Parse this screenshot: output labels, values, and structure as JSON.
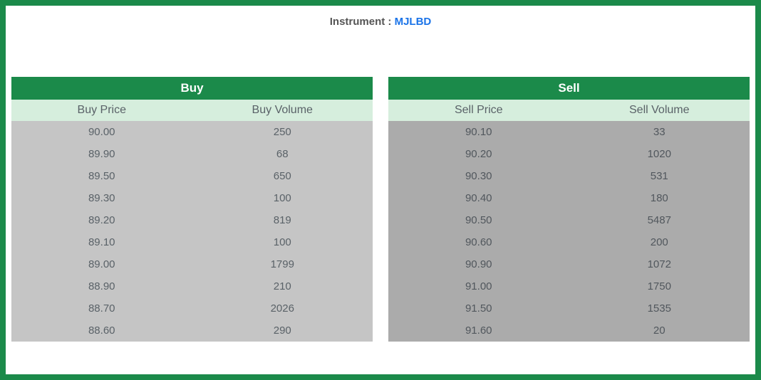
{
  "header": {
    "label": "Instrument : ",
    "value": "MJLBD"
  },
  "buy": {
    "title": "Buy",
    "columns": [
      "Buy Price",
      "Buy Volume"
    ],
    "rows": [
      [
        "90.00",
        "250"
      ],
      [
        "89.90",
        "68"
      ],
      [
        "89.50",
        "650"
      ],
      [
        "89.30",
        "100"
      ],
      [
        "89.20",
        "819"
      ],
      [
        "89.10",
        "100"
      ],
      [
        "89.00",
        "1799"
      ],
      [
        "88.90",
        "210"
      ],
      [
        "88.70",
        "2026"
      ],
      [
        "88.60",
        "290"
      ]
    ]
  },
  "sell": {
    "title": "Sell",
    "columns": [
      "Sell Price",
      "Sell Volume"
    ],
    "rows": [
      [
        "90.10",
        "33"
      ],
      [
        "90.20",
        "1020"
      ],
      [
        "90.30",
        "531"
      ],
      [
        "90.40",
        "180"
      ],
      [
        "90.50",
        "5487"
      ],
      [
        "90.60",
        "200"
      ],
      [
        "90.90",
        "1072"
      ],
      [
        "91.00",
        "1750"
      ],
      [
        "91.50",
        "1535"
      ],
      [
        "91.60",
        "20"
      ]
    ]
  },
  "colors": {
    "border": "#1b8a4a",
    "title_bg": "#1b8a4a",
    "subheader_bg": "#d6eedd",
    "buy_row_bg": "#c5c5c5",
    "sell_row_bg": "#ababab",
    "text": "#5a6268",
    "link": "#1a73e8"
  }
}
